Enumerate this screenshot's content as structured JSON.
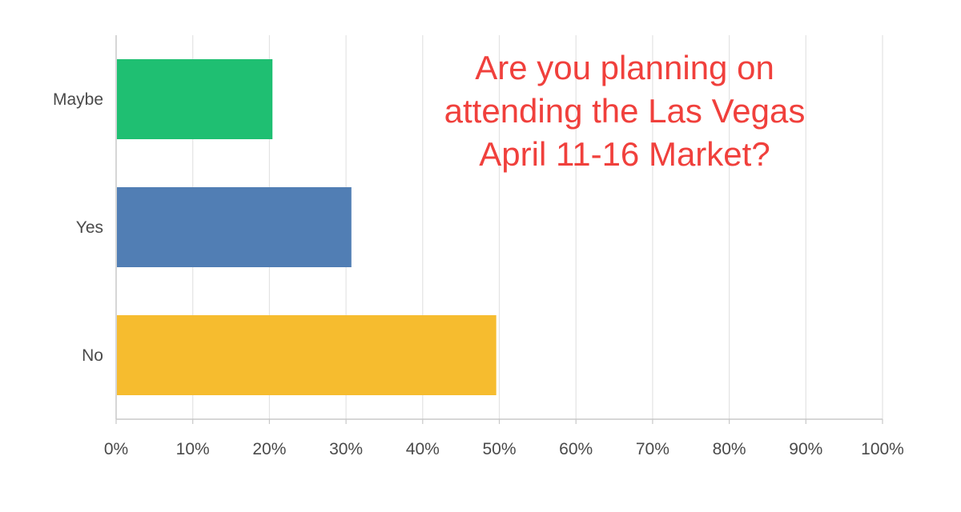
{
  "chart_data": {
    "type": "bar",
    "orientation": "horizontal",
    "title_lines": [
      "Are you planning on",
      "attending the Las Vegas",
      "April 11-16 Market?"
    ],
    "categories": [
      "Maybe",
      "Yes",
      "No"
    ],
    "values": [
      20.4,
      30.7,
      49.6
    ],
    "colors": [
      "#1fbf72",
      "#517eb4",
      "#f6bc2f"
    ],
    "xlim": [
      0,
      100
    ],
    "x_ticks": [
      "0%",
      "10%",
      "20%",
      "30%",
      "40%",
      "50%",
      "60%",
      "70%",
      "80%",
      "90%",
      "100%"
    ],
    "grid": true,
    "title_color": "#f0403c"
  }
}
